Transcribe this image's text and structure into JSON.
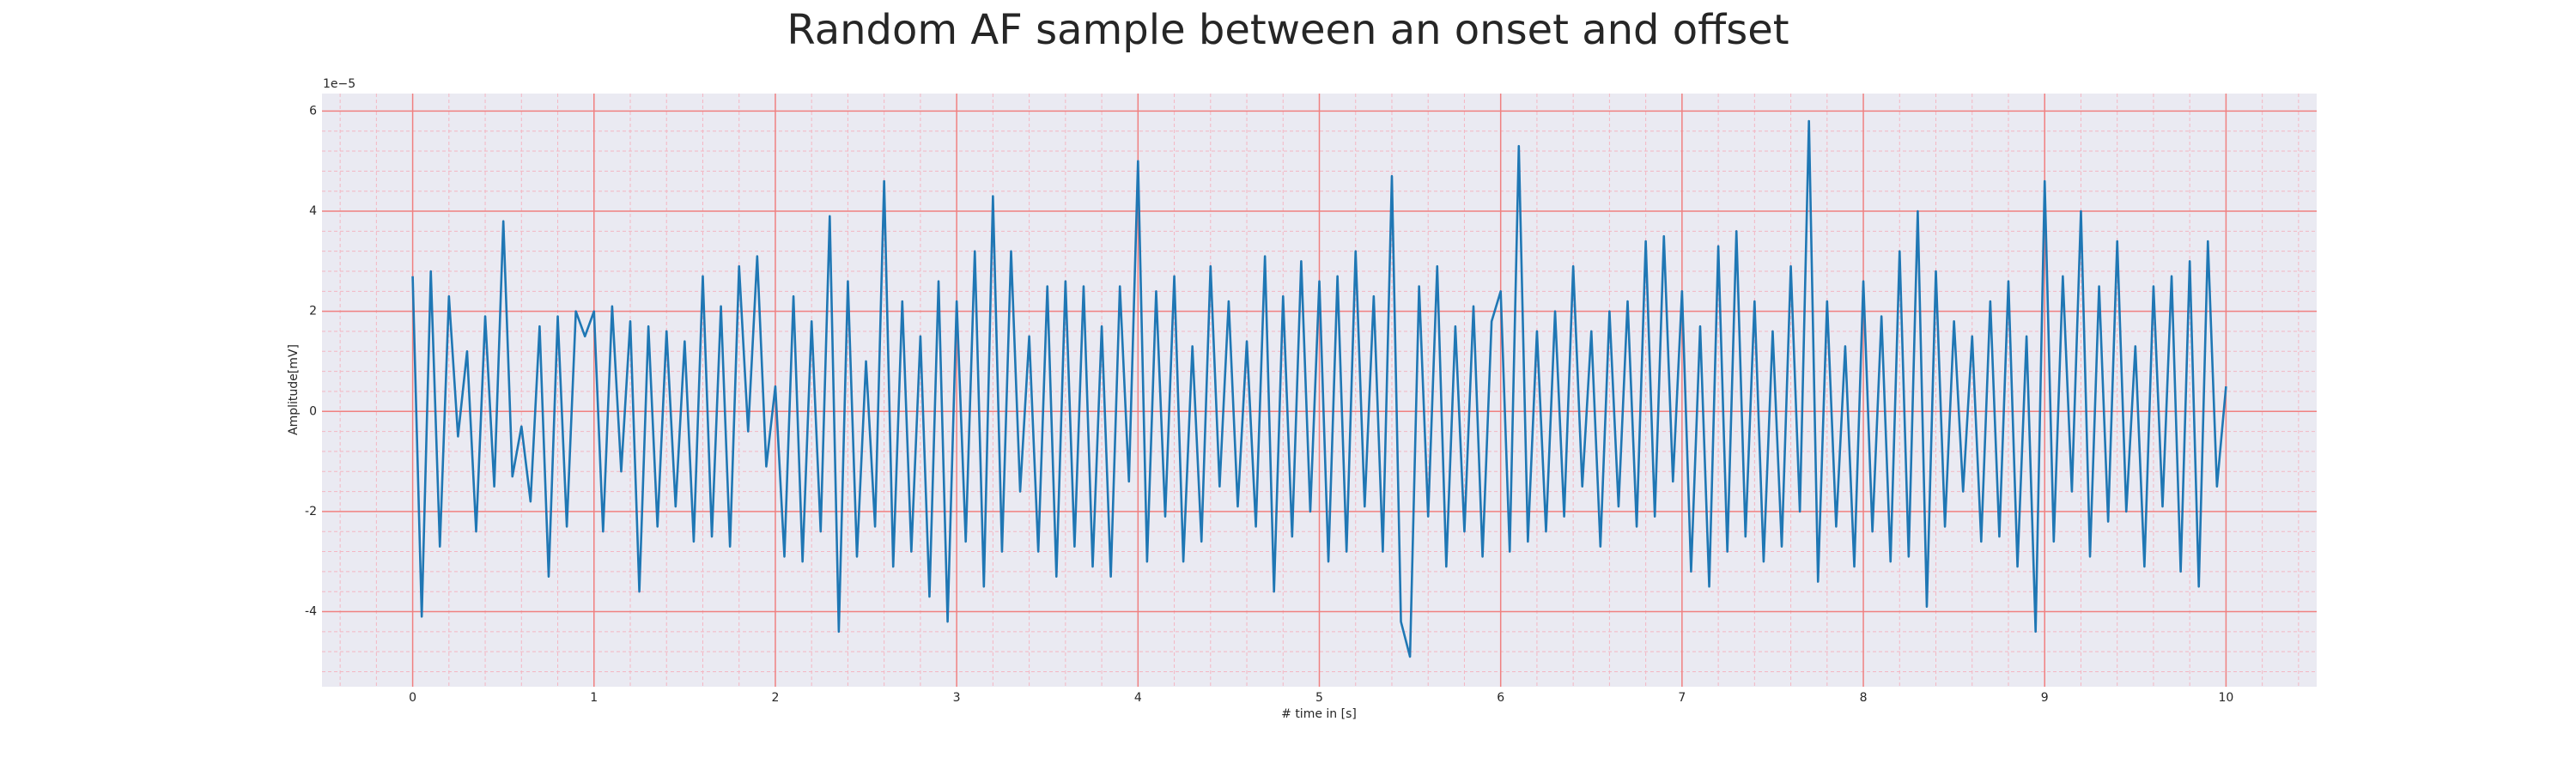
{
  "chart_data": {
    "type": "line",
    "title": "Random AF sample between an onset and offset",
    "xlabel": "# time in [s]",
    "ylabel": "Amplitude[mV]",
    "y_offset_label": "1e−5",
    "color": "#1f77b4",
    "xlim": [
      -0.5,
      10.5
    ],
    "ylim": [
      -5.5,
      6.35
    ],
    "xticks": [
      0,
      1,
      2,
      3,
      4,
      5,
      6,
      7,
      8,
      9,
      10
    ],
    "yticks": [
      -4,
      -2,
      0,
      2,
      4,
      6
    ],
    "grid": true,
    "grid_color": "#f08080",
    "minor_grid": true,
    "minor_grid_color": "#f4b6c2",
    "xminorticks": [
      -0.4,
      -0.2,
      0.2,
      0.4,
      0.6,
      0.8,
      1.2,
      1.4,
      1.6,
      1.8,
      2.2,
      2.4,
      2.6,
      2.8,
      3.2,
      3.4,
      3.6,
      3.8,
      4.2,
      4.4,
      4.6,
      4.8,
      5.2,
      5.4,
      5.6,
      5.8,
      6.2,
      6.4,
      6.6,
      6.8,
      7.2,
      7.4,
      7.6,
      7.8,
      8.2,
      8.4,
      8.6,
      8.8,
      9.2,
      9.4,
      9.6,
      9.8,
      10.2,
      10.4
    ],
    "yminorticks": [
      -5.2,
      -4.8,
      -4.4,
      -3.6,
      -3.2,
      -2.8,
      -2.4,
      -1.6,
      -1.2,
      -0.8,
      -0.4,
      0.4,
      0.8,
      1.2,
      1.6,
      2.4,
      2.8,
      3.2,
      3.6,
      4.4,
      4.8,
      5.2,
      5.6
    ],
    "x": [
      0,
      0.05,
      0.1,
      0.15,
      0.2,
      0.25,
      0.3,
      0.35,
      0.4,
      0.45,
      0.5,
      0.55,
      0.6,
      0.65,
      0.7,
      0.75,
      0.8,
      0.85,
      0.9,
      0.95,
      1,
      1.05,
      1.1,
      1.15,
      1.2,
      1.25,
      1.3,
      1.35,
      1.4,
      1.45,
      1.5,
      1.55,
      1.6,
      1.65,
      1.7,
      1.75,
      1.8,
      1.85,
      1.9,
      1.95,
      2,
      2.05,
      2.1,
      2.15,
      2.2,
      2.25,
      2.3,
      2.35,
      2.4,
      2.45,
      2.5,
      2.55,
      2.6,
      2.65,
      2.7,
      2.75,
      2.8,
      2.85,
      2.9,
      2.95,
      3,
      3.05,
      3.1,
      3.15,
      3.2,
      3.25,
      3.3,
      3.35,
      3.4,
      3.45,
      3.5,
      3.55,
      3.6,
      3.65,
      3.7,
      3.75,
      3.8,
      3.85,
      3.9,
      3.95,
      4,
      4.05,
      4.1,
      4.15,
      4.2,
      4.25,
      4.3,
      4.35,
      4.4,
      4.45,
      4.5,
      4.55,
      4.6,
      4.65,
      4.7,
      4.75,
      4.8,
      4.85,
      4.9,
      4.95,
      5,
      5.05,
      5.1,
      5.15,
      5.2,
      5.25,
      5.3,
      5.35,
      5.4,
      5.45,
      5.5,
      5.55,
      5.6,
      5.65,
      5.7,
      5.75,
      5.8,
      5.85,
      5.9,
      5.95,
      6,
      6.05,
      6.1,
      6.15,
      6.2,
      6.25,
      6.3,
      6.35,
      6.4,
      6.45,
      6.5,
      6.55,
      6.6,
      6.65,
      6.7,
      6.75,
      6.8,
      6.85,
      6.9,
      6.95,
      7,
      7.05,
      7.1,
      7.15,
      7.2,
      7.25,
      7.3,
      7.35,
      7.4,
      7.45,
      7.5,
      7.55,
      7.6,
      7.65,
      7.7,
      7.75,
      7.8,
      7.85,
      7.9,
      7.95,
      8,
      8.05,
      8.1,
      8.15,
      8.2,
      8.25,
      8.3,
      8.35,
      8.4,
      8.45,
      8.5,
      8.55,
      8.6,
      8.65,
      8.7,
      8.75,
      8.8,
      8.85,
      8.9,
      8.95,
      9,
      9.05,
      9.1,
      9.15,
      9.2,
      9.25,
      9.3,
      9.35,
      9.4,
      9.45,
      9.5,
      9.55,
      9.6,
      9.65,
      9.7,
      9.75,
      9.8,
      9.85,
      9.9,
      9.95,
      10
    ],
    "values": [
      2.7,
      -4.1,
      2.8,
      -2.7,
      2.3,
      -0.5,
      1.2,
      -2.4,
      1.9,
      -1.5,
      3.8,
      -1.3,
      -0.3,
      -1.8,
      1.7,
      -3.3,
      1.9,
      -2.3,
      2.0,
      1.5,
      2.0,
      -2.4,
      2.1,
      -1.2,
      1.8,
      -3.6,
      1.7,
      -2.3,
      1.6,
      -1.9,
      1.4,
      -2.6,
      2.7,
      -2.5,
      2.1,
      -2.7,
      2.9,
      -0.4,
      3.1,
      -1.1,
      0.5,
      -2.9,
      2.3,
      -3.0,
      1.8,
      -2.4,
      3.9,
      -4.4,
      2.6,
      -2.9,
      1.0,
      -2.3,
      4.6,
      -3.1,
      2.2,
      -2.8,
      1.5,
      -3.7,
      2.6,
      -4.2,
      2.2,
      -2.6,
      3.2,
      -3.5,
      4.3,
      -2.8,
      3.2,
      -1.6,
      1.5,
      -2.8,
      2.5,
      -3.3,
      2.6,
      -2.7,
      2.5,
      -3.1,
      1.7,
      -3.3,
      2.5,
      -1.4,
      5.0,
      -3.0,
      2.4,
      -2.1,
      2.7,
      -3.0,
      1.3,
      -2.6,
      2.9,
      -1.5,
      2.2,
      -1.9,
      1.4,
      -2.3,
      3.1,
      -3.6,
      2.3,
      -2.5,
      3.0,
      -2.0,
      2.6,
      -3.0,
      2.7,
      -2.8,
      3.2,
      -1.9,
      2.3,
      -2.8,
      4.7,
      -4.2,
      -4.9,
      2.5,
      -2.1,
      2.9,
      -3.1,
      1.7,
      -2.4,
      2.1,
      -2.9,
      1.8,
      2.4,
      -2.8,
      5.3,
      -2.6,
      1.6,
      -2.4,
      2.0,
      -2.1,
      2.9,
      -1.5,
      1.6,
      -2.7,
      2.0,
      -1.9,
      2.2,
      -2.3,
      3.4,
      -2.1,
      3.5,
      -1.4,
      2.4,
      -3.2,
      1.7,
      -3.5,
      3.3,
      -2.8,
      3.6,
      -2.5,
      2.2,
      -3.0,
      1.6,
      -2.7,
      2.9,
      -2.0,
      5.8,
      -3.4,
      2.2,
      -2.3,
      1.3,
      -3.1,
      2.6,
      -2.4,
      1.9,
      -3.0,
      3.2,
      -2.9,
      4.0,
      -3.9,
      2.8,
      -2.3,
      1.8,
      -1.6,
      1.5,
      -2.6,
      2.2,
      -2.5,
      2.6,
      -3.1,
      1.5,
      -4.4,
      4.6,
      -2.6,
      2.7,
      -1.6,
      4.0,
      -2.9,
      2.5,
      -2.2,
      3.4,
      -2.0,
      1.3,
      -3.1,
      2.5,
      -1.9,
      2.7,
      -3.2,
      3.0,
      -3.5,
      3.4,
      -1.5,
      0.5
    ]
  }
}
